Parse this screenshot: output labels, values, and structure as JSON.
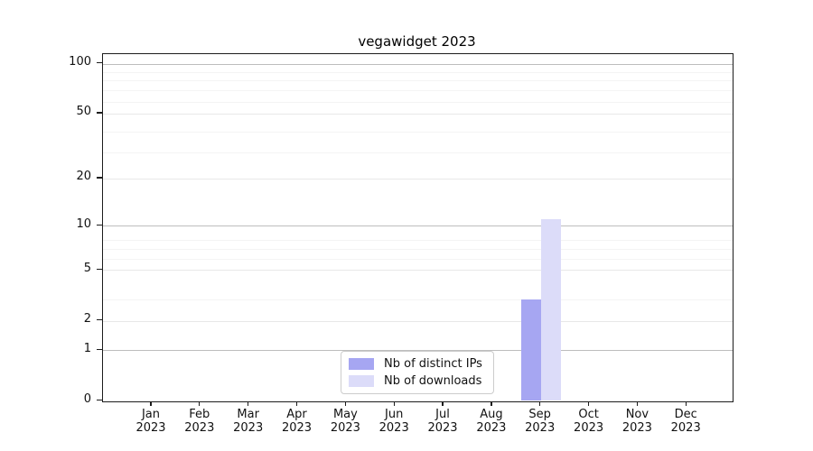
{
  "chart_data": {
    "type": "bar",
    "title": "vegawidget 2023",
    "year_label": "2023",
    "categories": [
      "Jan",
      "Feb",
      "Mar",
      "Apr",
      "May",
      "Jun",
      "Jul",
      "Aug",
      "Sep",
      "Oct",
      "Nov",
      "Dec"
    ],
    "series": [
      {
        "name": "Nb of distinct IPs",
        "color": "#a6a6f2",
        "values": [
          0,
          0,
          0,
          0,
          0,
          0,
          0,
          0,
          3,
          0,
          0,
          0
        ]
      },
      {
        "name": "Nb of downloads",
        "color": "#dcdcf9",
        "values": [
          0,
          0,
          0,
          0,
          0,
          0,
          0,
          0,
          11,
          0,
          0,
          0
        ]
      }
    ],
    "y_ticks": [
      0,
      1,
      2,
      5,
      10,
      20,
      50,
      100
    ],
    "y_scale": "log10(1+x)",
    "y_minor_gridlines_1plus": [
      4,
      7,
      8,
      9,
      30,
      40,
      60,
      70,
      80,
      90
    ],
    "ylim": [
      0,
      115
    ],
    "grid": true,
    "legend_position": "inside-bottom-center",
    "colors": {
      "decade_gridline": "#bdbdbd",
      "major_gridline": "#e8e8e8",
      "minor_gridline": "#f4f4f4",
      "axis": "#1c1c1c",
      "text": "#111111"
    }
  }
}
